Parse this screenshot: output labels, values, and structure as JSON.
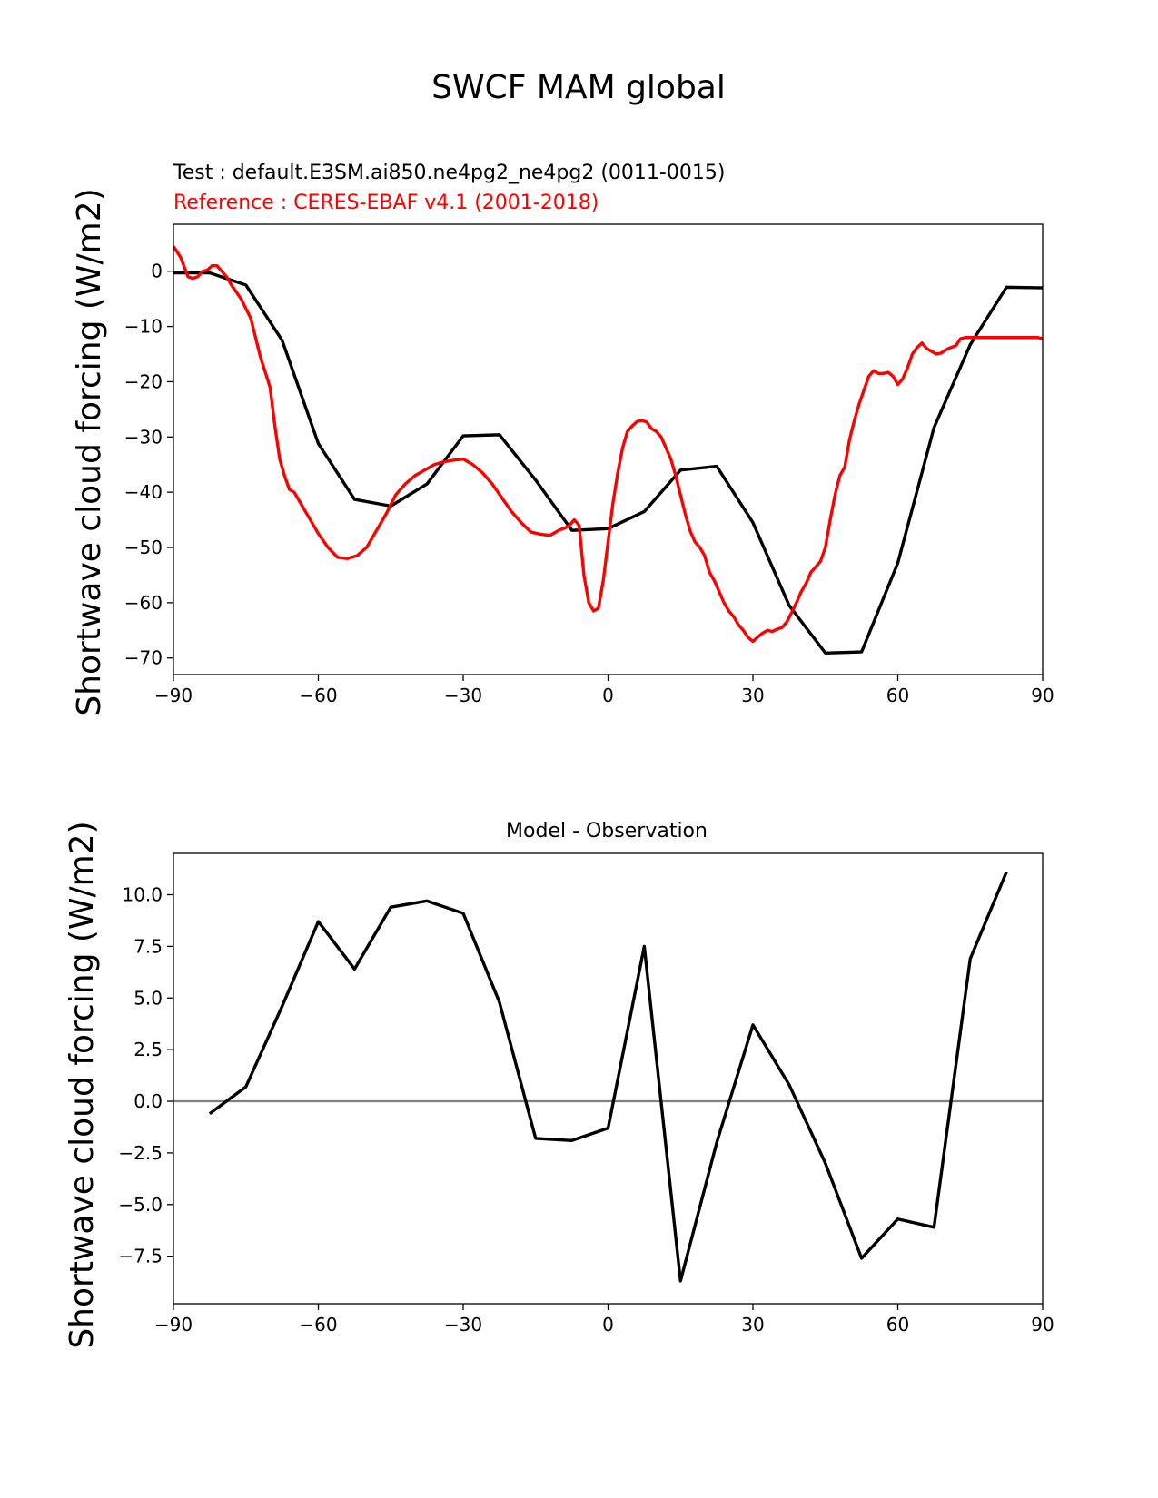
{
  "figure": {
    "suptitle": "SWCF MAM global",
    "ylabel": "Shortwave cloud forcing (W/m2)"
  },
  "chart_data": [
    {
      "type": "line",
      "test_label": "Test : default.E3SM.ai850.ne4pg2_ne4pg2 (0011-0015)",
      "reference_label": "Reference : CERES-EBAF v4.1 (2001-2018)",
      "xlabel": "",
      "ylabel": "Shortwave cloud forcing (W/m2)",
      "xlim": [
        -90,
        90
      ],
      "ylim": [
        -73,
        8.5
      ],
      "xticks": [
        -90,
        -60,
        -30,
        0,
        30,
        60,
        90
      ],
      "yticks": [
        0,
        -10,
        -20,
        -30,
        -40,
        -50,
        -60,
        -70
      ],
      "grid": false,
      "series": [
        {
          "color": "#000000",
          "x": [
            -90,
            -82.5,
            -75,
            -67.5,
            -60,
            -52.5,
            -45,
            -37.5,
            -30,
            -22.5,
            -15,
            -7.5,
            0,
            7.5,
            15,
            22.5,
            30,
            37.5,
            45,
            52.5,
            60,
            67.5,
            75,
            82.5,
            90
          ],
          "y": [
            -0.3,
            -0.3,
            -2.5,
            -12.5,
            -31.2,
            -41.3,
            -42.5,
            -38.5,
            -29.8,
            -29.6,
            -37.8,
            -46.9,
            -46.6,
            -43.5,
            -36.0,
            -35.3,
            -45.5,
            -60.5,
            -69.1,
            -68.9,
            -52.8,
            -28.3,
            -13.3,
            -2.9,
            -3.0
          ]
        },
        {
          "color": "#ff0000",
          "x": [
            -90,
            -88.5,
            -87,
            -86,
            -85,
            -84,
            -83,
            -82,
            -81,
            -80,
            -79,
            -78,
            -76,
            -74,
            -72,
            -70,
            -69,
            -68,
            -67,
            -66,
            -65,
            -64,
            -63,
            -62,
            -61,
            -60,
            -58,
            -56,
            -54,
            -52,
            -50,
            -48,
            -46,
            -44,
            -42,
            -40,
            -38,
            -36,
            -34,
            -32,
            -30,
            -28,
            -26,
            -24,
            -22,
            -20,
            -18,
            -16,
            -14,
            -12,
            -10,
            -9,
            -8,
            -7,
            -6,
            -5,
            -4,
            -3,
            -2,
            -1,
            0,
            1,
            2,
            3,
            4,
            5,
            6,
            7,
            8,
            9,
            10,
            11,
            12,
            13,
            14,
            15,
            16,
            17,
            18,
            19,
            20,
            21,
            22,
            23,
            24,
            25,
            26,
            27,
            28,
            29,
            30,
            31,
            32,
            33,
            34,
            35,
            36,
            37,
            38,
            39,
            40,
            41,
            42,
            43,
            44,
            45,
            46,
            47,
            48,
            49,
            50,
            51,
            52,
            53,
            54,
            55,
            56,
            57,
            58,
            59,
            60,
            61,
            62,
            63,
            64,
            65,
            66,
            67,
            68,
            69,
            70,
            71,
            72,
            73,
            74,
            75,
            76,
            77,
            78,
            79,
            80,
            81,
            82,
            83,
            84,
            85,
            86,
            87,
            88,
            89,
            90
          ],
          "y": [
            4.5,
            2.5,
            -1.0,
            -1.3,
            -1.0,
            0.0,
            0.2,
            1.0,
            1.0,
            0.0,
            -1.0,
            -2.5,
            -5.0,
            -8.5,
            -15.5,
            -21.0,
            -28.0,
            -34.0,
            -37.0,
            -39.5,
            -40.0,
            -41.5,
            -43.0,
            -44.5,
            -46.0,
            -47.5,
            -50.0,
            -51.8,
            -52.0,
            -51.5,
            -50.0,
            -47.0,
            -44.0,
            -40.5,
            -38.5,
            -37.0,
            -36.0,
            -35.0,
            -34.5,
            -34.2,
            -34.0,
            -35.0,
            -36.5,
            -38.5,
            -41.0,
            -43.5,
            -45.5,
            -47.2,
            -47.6,
            -47.8,
            -46.8,
            -46.5,
            -46.0,
            -45.0,
            -46.0,
            -55.0,
            -60.0,
            -61.5,
            -61.0,
            -56.0,
            -49.0,
            -42.0,
            -36.5,
            -32.0,
            -29.0,
            -28.0,
            -27.2,
            -27.0,
            -27.3,
            -28.5,
            -29.0,
            -30.0,
            -32.0,
            -34.0,
            -37.0,
            -40.5,
            -44.0,
            -47.0,
            -49.0,
            -50.0,
            -51.5,
            -54.5,
            -56.0,
            -58.0,
            -60.0,
            -61.5,
            -62.5,
            -64.0,
            -65.0,
            -66.3,
            -67.0,
            -66.2,
            -65.5,
            -65.0,
            -65.2,
            -64.8,
            -64.5,
            -63.5,
            -61.8,
            -60.0,
            -58.0,
            -56.5,
            -54.5,
            -53.5,
            -52.5,
            -50.0,
            -45.0,
            -40.5,
            -37.0,
            -35.5,
            -30.5,
            -27.0,
            -24.0,
            -21.5,
            -19.0,
            -18.0,
            -18.5,
            -18.5,
            -18.3,
            -19.0,
            -20.5,
            -19.5,
            -17.5,
            -15.0,
            -13.8,
            -13.0,
            -14.0,
            -14.5,
            -15.0,
            -14.8,
            -14.2,
            -13.8,
            -13.5,
            -12.2,
            -12.0,
            -12.0,
            -12.0,
            -12.0,
            -12.0,
            -12.0,
            -12.0,
            -12.0,
            -12.0,
            -12.0,
            -12.0,
            -12.0,
            -12.0,
            -12.0,
            -12.0,
            -12.0,
            -12.2
          ]
        }
      ]
    },
    {
      "type": "line",
      "title": "Model - Observation",
      "xlabel": "",
      "ylabel": "Shortwave cloud forcing (W/m2)",
      "xlim": [
        -90,
        90
      ],
      "ylim": [
        -9.8,
        12.0
      ],
      "xticks": [
        -90,
        -60,
        -30,
        0,
        30,
        60,
        90
      ],
      "yticks": [
        10.0,
        7.5,
        5.0,
        2.5,
        0.0,
        -2.5,
        -5.0,
        -7.5
      ],
      "ytick_labels": [
        "10.0",
        "7.5",
        "5.0",
        "2.5",
        "0.0",
        "−2.5",
        "−5.0",
        "−7.5"
      ],
      "grid": false,
      "zero_line_color": "#808080",
      "series": [
        {
          "color": "#000000",
          "x": [
            -82.5,
            -75,
            -67.5,
            -60,
            -52.5,
            -45,
            -37.5,
            -30,
            -22.5,
            -15,
            -7.5,
            0,
            7.5,
            15,
            22.5,
            30,
            37.5,
            45,
            52.5,
            60,
            67.5,
            75,
            82.5
          ],
          "y": [
            -0.6,
            0.7,
            4.6,
            8.7,
            6.4,
            9.4,
            9.7,
            9.1,
            4.8,
            -1.8,
            -1.9,
            -1.3,
            7.5,
            -8.7,
            -2.0,
            3.7,
            0.8,
            -3.0,
            -7.6,
            -5.7,
            -6.1,
            6.9,
            11.1
          ]
        }
      ]
    }
  ]
}
